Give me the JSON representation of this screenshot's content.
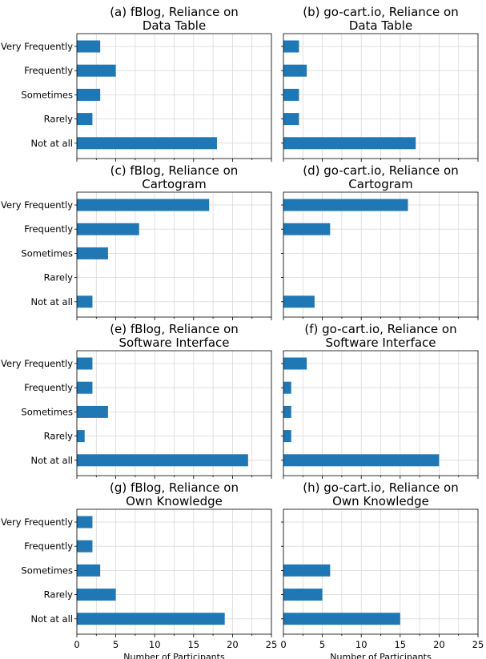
{
  "chart_data": [
    {
      "type": "bar",
      "orientation": "horizontal",
      "title": "(a) fBlog, Reliance on\nData Table",
      "categories": [
        "Very Frequently",
        "Frequently",
        "Sometimes",
        "Rarely",
        "Not at all"
      ],
      "values": [
        3,
        5,
        3,
        2,
        18
      ],
      "xlabel": "",
      "xlim": [
        0,
        25
      ],
      "grid": true
    },
    {
      "type": "bar",
      "orientation": "horizontal",
      "title": "(b) go-cart.io, Reliance on\nData Table",
      "categories": [
        "Very Frequently",
        "Frequently",
        "Sometimes",
        "Rarely",
        "Not at all"
      ],
      "values": [
        2,
        3,
        2,
        2,
        17
      ],
      "xlabel": "",
      "xlim": [
        0,
        25
      ],
      "grid": true
    },
    {
      "type": "bar",
      "orientation": "horizontal",
      "title": "(c) fBlog, Reliance on\nCartogram",
      "categories": [
        "Very Frequently",
        "Frequently",
        "Sometimes",
        "Rarely",
        "Not at all"
      ],
      "values": [
        17,
        8,
        4,
        0,
        2
      ],
      "xlabel": "",
      "xlim": [
        0,
        25
      ],
      "grid": true
    },
    {
      "type": "bar",
      "orientation": "horizontal",
      "title": "(d) go-cart.io, Reliance on\nCartogram",
      "categories": [
        "Very Frequently",
        "Frequently",
        "Sometimes",
        "Rarely",
        "Not at all"
      ],
      "values": [
        16,
        6,
        0,
        0,
        4
      ],
      "xlabel": "",
      "xlim": [
        0,
        25
      ],
      "grid": true
    },
    {
      "type": "bar",
      "orientation": "horizontal",
      "title": "(e) fBlog, Reliance on\nSoftware Interface",
      "categories": [
        "Very Frequently",
        "Frequently",
        "Sometimes",
        "Rarely",
        "Not at all"
      ],
      "values": [
        2,
        2,
        4,
        1,
        22
      ],
      "xlabel": "",
      "xlim": [
        0,
        25
      ],
      "grid": true
    },
    {
      "type": "bar",
      "orientation": "horizontal",
      "title": "(f) go-cart.io, Reliance on\nSoftware Interface",
      "categories": [
        "Very Frequently",
        "Frequently",
        "Sometimes",
        "Rarely",
        "Not at all"
      ],
      "values": [
        3,
        1,
        1,
        1,
        20
      ],
      "xlabel": "",
      "xlim": [
        0,
        25
      ],
      "grid": true
    },
    {
      "type": "bar",
      "orientation": "horizontal",
      "title": "(g) fBlog, Reliance on\nOwn Knowledge",
      "categories": [
        "Very Frequently",
        "Frequently",
        "Sometimes",
        "Rarely",
        "Not at all"
      ],
      "values": [
        2,
        2,
        3,
        5,
        19
      ],
      "xlabel": "Number of Participants",
      "xlim": [
        0,
        25
      ],
      "xticks": [
        0,
        5,
        10,
        15,
        20,
        25
      ],
      "grid": true
    },
    {
      "type": "bar",
      "orientation": "horizontal",
      "title": "(h) go-cart.io, Reliance on\nOwn Knowledge",
      "categories": [
        "Very Frequently",
        "Frequently",
        "Sometimes",
        "Rarely",
        "Not at all"
      ],
      "values": [
        0,
        0,
        6,
        5,
        15
      ],
      "xlabel": "Number of Participants",
      "xlim": [
        0,
        25
      ],
      "xticks": [
        0,
        5,
        10,
        15,
        20,
        25
      ],
      "grid": true
    }
  ],
  "colors": {
    "bar": "#1f77b4",
    "grid": "#d9d9d9"
  }
}
